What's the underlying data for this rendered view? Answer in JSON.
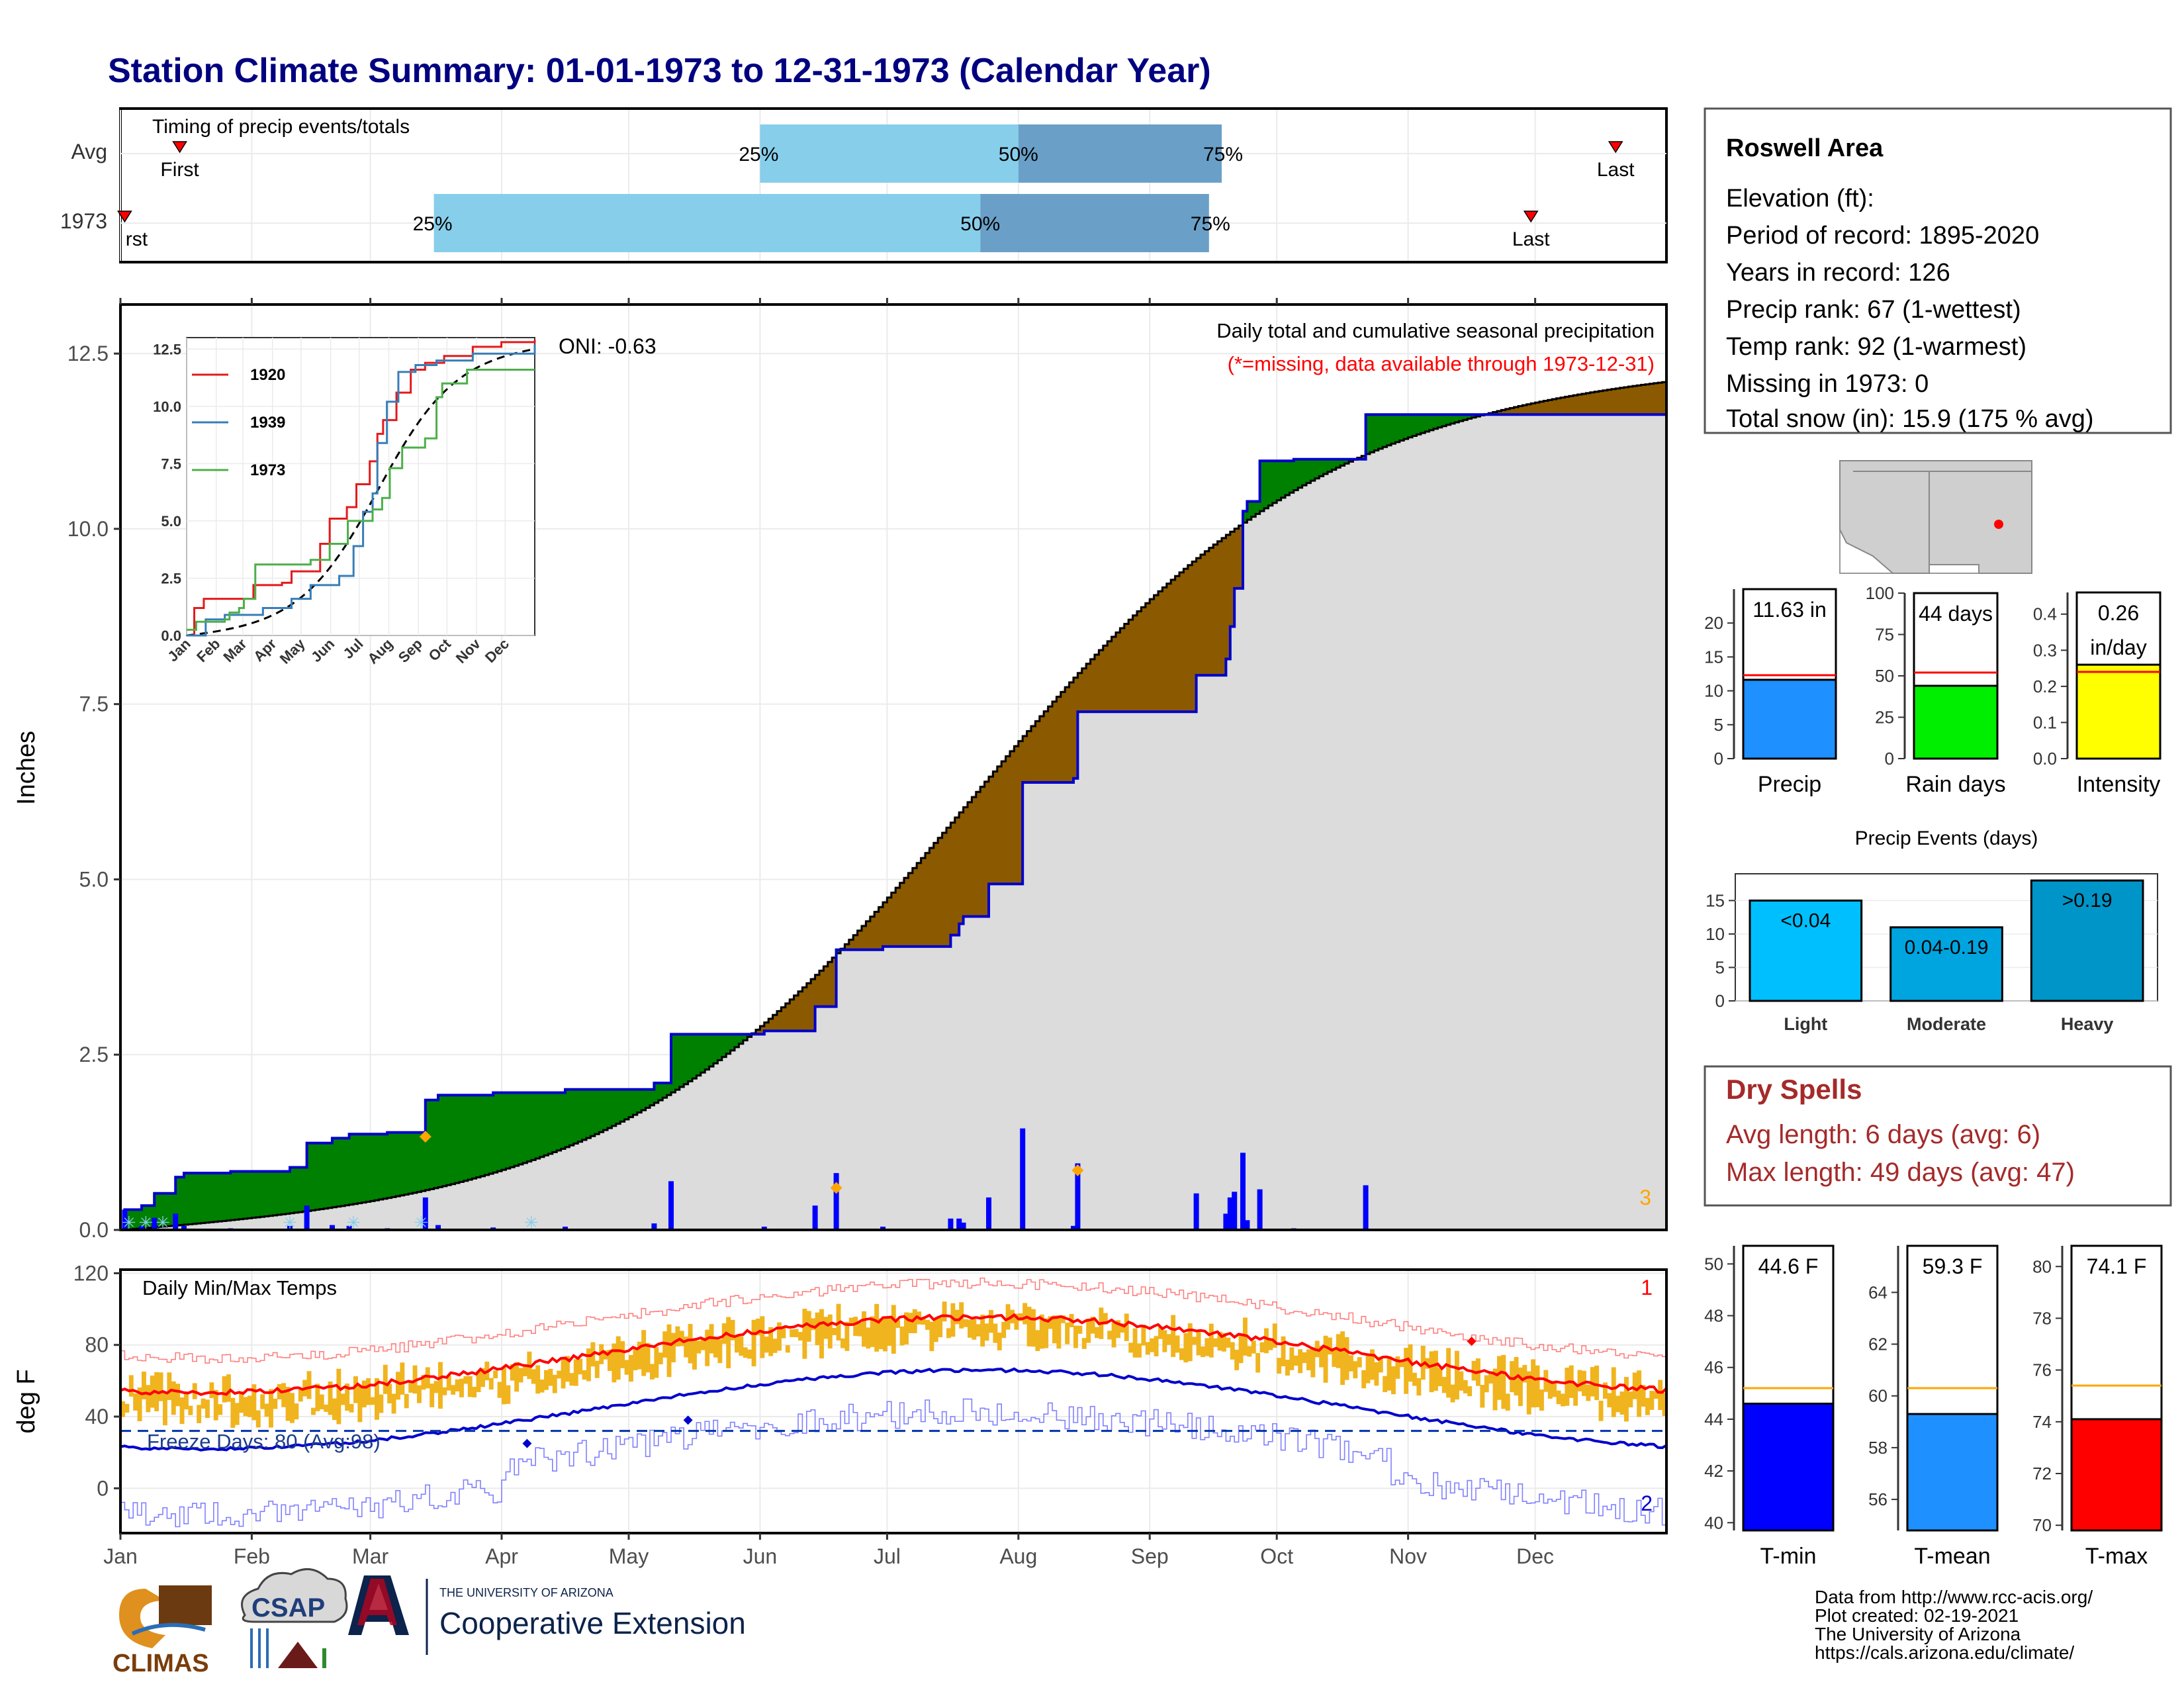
{
  "page": {
    "title": "Station Climate Summary: 01-01-1973 to 12-31-1973 (Calendar Year)"
  },
  "timing": {
    "title": "Timing of precip events/totals",
    "rows": [
      {
        "label": "Avg",
        "first": 14,
        "p25": 151,
        "p50": 212,
        "p75": 260,
        "last": 353
      },
      {
        "label": "1973",
        "first": 1,
        "p25": 74,
        "p50": 203,
        "p75": 257,
        "last": 333
      }
    ],
    "first_label": "First",
    "first_label_clipped": "rst",
    "last_label": "Last",
    "p25_label": "25%",
    "p50_label": "50%",
    "p75_label": "75%"
  },
  "station": {
    "name": "Roswell Area",
    "lines": [
      "Elevation (ft):",
      "Period of record: 1895-2020",
      "Years in record: 126",
      "Precip rank: 67 (1-wettest)",
      "Temp rank: 92 (1-warmest)",
      "Missing in 1973: 0",
      "Total snow (in): 15.9 (175 % avg)"
    ]
  },
  "months": [
    "Jan",
    "Feb",
    "Mar",
    "Apr",
    "May",
    "Jun",
    "Jul",
    "Aug",
    "Sep",
    "Oct",
    "Nov",
    "Dec"
  ],
  "precip_panel": {
    "ylabel": "Inches",
    "yticks": [
      0.0,
      2.5,
      5.0,
      7.5,
      10.0,
      12.5
    ],
    "ytick_labels": [
      "0.0",
      "2.5",
      "5.0",
      "7.5",
      "10.0",
      "12.5"
    ],
    "ylim": [
      0,
      13.2
    ],
    "oni": "ONI: -0.63",
    "title_line1": "Daily total and cumulative seasonal precipitation",
    "title_line2": "(*=missing, data available through 1973-12-31)",
    "corner_count": "3",
    "colors": {
      "above": "#008000",
      "below": "#8B5A00",
      "avg_fill": "#dcdcdc",
      "obs_line": "#0000cc",
      "bars": "#0000ff",
      "markers": "#ffa500",
      "snow": "#87ceeb"
    }
  },
  "inset": {
    "yticks": [
      "0.0",
      "2.5",
      "5.0",
      "7.5",
      "10.0",
      "12.5"
    ],
    "xlabels": [
      "Jan",
      "Feb",
      "Mar",
      "Apr",
      "May",
      "Jun",
      "Jul",
      "Aug",
      "Sep",
      "Oct",
      "Nov",
      "Dec"
    ],
    "legend": [
      {
        "name": "1920",
        "color": "#e41a1c"
      },
      {
        "name": "1939",
        "color": "#377eb8"
      },
      {
        "name": "1973",
        "color": "#4daf4a"
      }
    ]
  },
  "temp_panel": {
    "ylabel": "deg F",
    "title": "Daily Min/Max Temps",
    "yticks": [
      0,
      40,
      80,
      120
    ],
    "ytick_labels": [
      "0",
      "40",
      "80",
      "120"
    ],
    "ylim": [
      -25,
      122
    ],
    "freeze_text": "Freeze Days: 80 (Avg:98)",
    "freeze_line": 32,
    "corner_top": "1",
    "corner_bottom": "2",
    "colors": {
      "range": "#F0B41E",
      "avg_max": "#ff0000",
      "avg_min": "#0000cc",
      "rec_max": "#ff8080",
      "rec_min": "#8080ff",
      "freeze": "#0033aa"
    }
  },
  "chart_data": [
    {
      "type": "bar",
      "title": "",
      "categories": [
        "Precip"
      ],
      "values": [
        11.63
      ],
      "avg": 12.3,
      "label": "11.63 in",
      "ylim": [
        0,
        25
      ],
      "yticks": [
        "0",
        "5",
        "10",
        "15",
        "20"
      ],
      "color": "#1e90ff"
    },
    {
      "type": "bar",
      "categories": [
        "Rain days"
      ],
      "values": [
        44
      ],
      "avg": 52,
      "label": "44 days",
      "ylim": [
        0,
        100
      ],
      "yticks": [
        "0",
        "25",
        "50",
        "75",
        "100"
      ],
      "color": "#00ee00"
    },
    {
      "type": "bar",
      "categories": [
        "Intensity"
      ],
      "values": [
        0.26
      ],
      "avg": 0.24,
      "label_line1": "0.26",
      "label_line2": "in/day",
      "ylim": [
        0,
        0.46
      ],
      "yticks": [
        "0.0",
        "0.1",
        "0.2",
        "0.3",
        "0.4"
      ],
      "color": "#ffff00"
    },
    {
      "type": "bar",
      "title": "Precip Events (days)",
      "categories": [
        "Light",
        "Moderate",
        "Heavy"
      ],
      "values": [
        15,
        11,
        18
      ],
      "bar_labels": [
        "<0.04",
        "0.04-0.19",
        ">0.19"
      ],
      "ylim": [
        0,
        19
      ],
      "yticks": [
        "0",
        "5",
        "10",
        "15"
      ],
      "colors": [
        "#00bfff",
        "#00a5e0",
        "#0095c8"
      ]
    },
    {
      "type": "bar",
      "categories": [
        "T-min"
      ],
      "values": [
        44.6
      ],
      "avg": 45.2,
      "label": "44.6 F",
      "ylim": [
        39.7,
        50.7
      ],
      "yticks": [
        "40",
        "42",
        "44",
        "46",
        "48",
        "50"
      ],
      "color": "#0000ff"
    },
    {
      "type": "bar",
      "categories": [
        "T-mean"
      ],
      "values": [
        59.3
      ],
      "avg": 60.3,
      "label": "59.3 F",
      "ylim": [
        54.8,
        65.8
      ],
      "yticks": [
        "56",
        "58",
        "60",
        "62",
        "64"
      ],
      "color": "#1e90ff"
    },
    {
      "type": "bar",
      "categories": [
        "T-max"
      ],
      "values": [
        74.1
      ],
      "avg": 75.4,
      "label": "74.1 F",
      "ylim": [
        69.8,
        80.8
      ],
      "yticks": [
        "70",
        "72",
        "74",
        "76",
        "78",
        "80"
      ],
      "color": "#ff0000"
    }
  ],
  "dry_spells": {
    "title": "Dry Spells",
    "avg_line": "Avg length: 6 days (avg: 6)",
    "max_line": "Max length: 49 days (avg: 47)"
  },
  "footer": {
    "lines": [
      "Data from http://www.rcc-acis.org/",
      "Plot created: 02-19-2021",
      "The University of Arizona",
      "https://cals.arizona.edu/climate/"
    ],
    "climas": "CLIMAS",
    "csap": "CSAP",
    "ua_small": "THE UNIVERSITY OF ARIZONA",
    "ua_big": "Cooperative Extension"
  }
}
